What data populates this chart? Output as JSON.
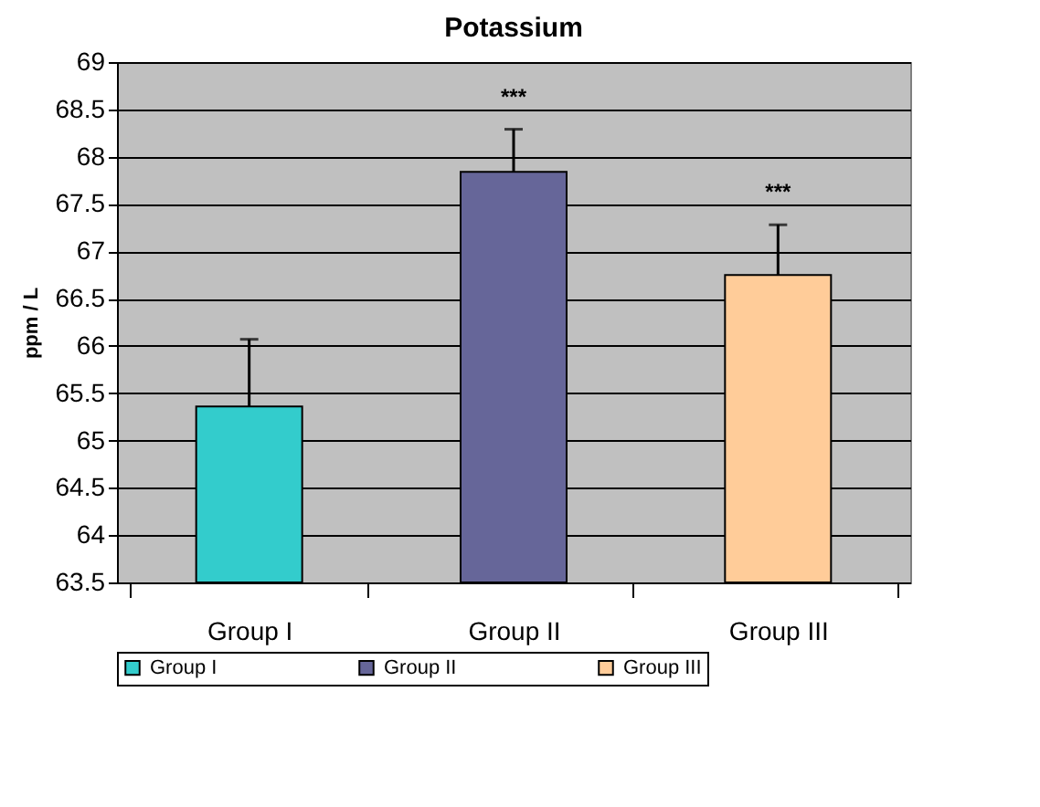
{
  "chart_data": {
    "type": "bar",
    "title": "Potassium",
    "ylabel": "ppm / L",
    "categories": [
      "Group I",
      "Group II",
      "Group III"
    ],
    "series": [
      {
        "name": "Group I",
        "color": "#33cccc",
        "values": [
          65.36,
          null,
          null
        ],
        "errors": [
          [
            65.36,
            66.07
          ],
          null,
          null
        ]
      },
      {
        "name": "Group II",
        "color": "#666699",
        "values": [
          null,
          67.84,
          null
        ],
        "errors": [
          null,
          [
            67.84,
            68.29
          ],
          null
        ]
      },
      {
        "name": "Group III",
        "color": "#ffcc99",
        "values": [
          null,
          null,
          66.75
        ],
        "errors": [
          null,
          null,
          [
            66.75,
            67.28
          ]
        ]
      }
    ],
    "ylim": [
      63.5,
      69
    ],
    "yticks": [
      63.5,
      64,
      64.5,
      65,
      65.5,
      66,
      66.5,
      67,
      67.5,
      68,
      68.5,
      69
    ],
    "grid": "y",
    "legend": "bottom",
    "annotations": [
      "***",
      "***"
    ]
  }
}
